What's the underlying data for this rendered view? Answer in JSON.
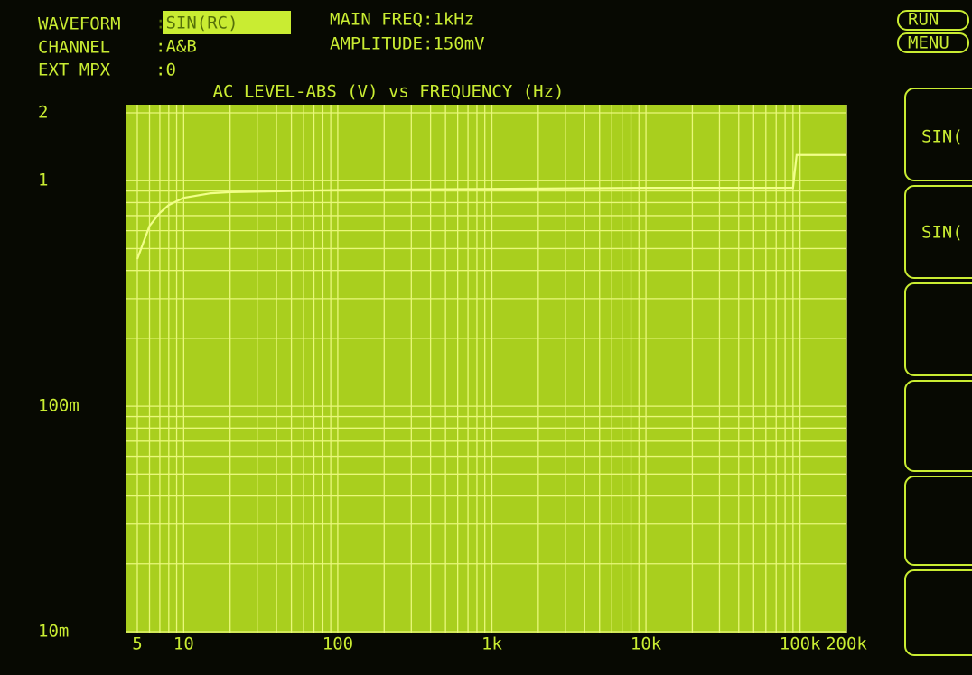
{
  "header": {
    "waveform_label": "WAVEFORM",
    "waveform_value": ":SIN(RC)",
    "channel_label": "CHANNEL",
    "channel_value": ":A&B",
    "ext_mpx_label": "EXT MPX",
    "ext_mpx_value": ":0",
    "main_freq": "MAIN FREQ:1kHz",
    "amplitude": "AMPLITUDE:150mV"
  },
  "buttons": {
    "run": "RUN",
    "menu": "MENU",
    "softkeys": [
      "SIN(",
      "SIN("
    ]
  },
  "chart_data": {
    "type": "line",
    "title": "AC LEVEL-ABS (V) vs FREQUENCY (Hz)",
    "color": "#f2ff8a",
    "log_x": true,
    "log_y": true,
    "grid": true,
    "x": [
      5,
      6,
      7,
      8,
      10,
      15,
      20,
      50,
      100,
      1000,
      10000,
      90000,
      95000,
      200000
    ],
    "values": [
      0.45,
      0.63,
      0.72,
      0.78,
      0.84,
      0.88,
      0.89,
      0.9,
      0.91,
      0.92,
      0.93,
      0.93,
      1.3,
      1.3
    ],
    "xlim": [
      5,
      200000
    ],
    "ylim": [
      0.01,
      2
    ],
    "xticks": [
      5,
      10,
      100,
      {
        "value": 1000,
        "label": "1k"
      },
      {
        "value": 10000,
        "label": "10k"
      },
      {
        "value": 100000,
        "label": "100k"
      },
      {
        "value": 200000,
        "label": "200k"
      }
    ],
    "yticks": [
      {
        "value": 0.01,
        "label": "10m"
      },
      {
        "value": 0.1,
        "label": "100m"
      },
      1,
      2
    ],
    "xminorticks": [
      6,
      7,
      8,
      9,
      20,
      30,
      40,
      50,
      60,
      70,
      80,
      90,
      200,
      300,
      400,
      500,
      600,
      700,
      800,
      900,
      2000,
      3000,
      4000,
      5000,
      6000,
      7000,
      8000,
      9000,
      20000,
      30000,
      40000,
      50000,
      60000,
      70000,
      80000,
      90000
    ],
    "yminorticks": [
      0.02,
      0.03,
      0.04,
      0.05,
      0.06,
      0.07,
      0.08,
      0.09,
      0.2,
      0.3,
      0.4,
      0.5,
      0.6,
      0.7,
      0.8,
      0.9
    ]
  }
}
